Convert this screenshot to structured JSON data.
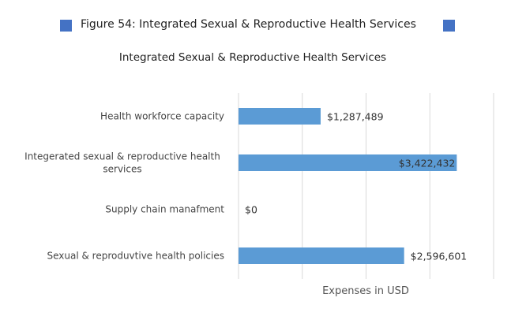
{
  "figure": {
    "caption": "Figure 54: Integrated Sexual & Reproductive Health Services",
    "accent_color": "#4472c4"
  },
  "chart_data": {
    "type": "bar",
    "orientation": "horizontal",
    "title": "Integrated Sexual & Reproductive Health Services",
    "xlabel": "Expenses in USD",
    "ylabel": "",
    "categories": [
      "Health workforce capacity",
      "Integerated sexual & reproductive health services",
      "Supply chain manafment",
      "Sexual & reproduvtive health policies"
    ],
    "category_lines": [
      [
        "Health workforce capacity"
      ],
      [
        "Integerated sexual & reproductive health",
        "services"
      ],
      [
        "Supply chain manafment"
      ],
      [
        "Sexual & reproduvtive health policies"
      ]
    ],
    "values": [
      1287489,
      3422432,
      0,
      2596601
    ],
    "value_labels": [
      "$1,287,489",
      "$3,422,432",
      "$0",
      "$2,596,601"
    ],
    "xlim": [
      0,
      4000000
    ],
    "grid": true,
    "legend": "none",
    "bar_color": "#5b9bd5",
    "grid_color": "#d9d9d9"
  }
}
